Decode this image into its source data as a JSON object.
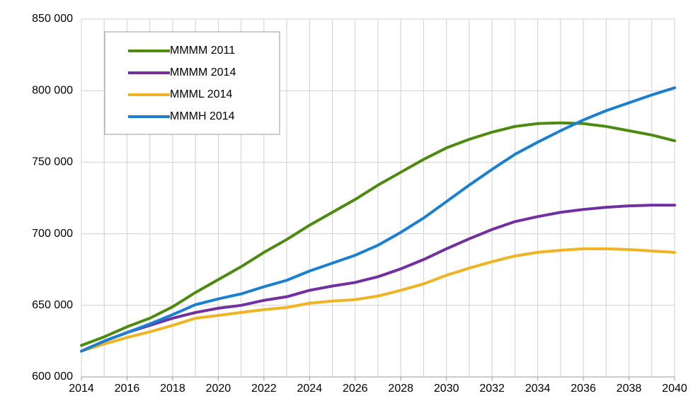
{
  "chart_data": {
    "type": "line",
    "x": [
      2014,
      2015,
      2016,
      2017,
      2018,
      2019,
      2020,
      2021,
      2022,
      2023,
      2024,
      2025,
      2026,
      2027,
      2028,
      2029,
      2030,
      2031,
      2032,
      2033,
      2034,
      2035,
      2036,
      2037,
      2038,
      2039,
      2040
    ],
    "series": [
      {
        "name": "MMMM 2011",
        "color": "#4e8a10",
        "values": [
          622000,
          628000,
          635000,
          641000,
          649000,
          659000,
          668000,
          677000,
          687000,
          696000,
          706000,
          715000,
          724000,
          734000,
          743000,
          752000,
          760000,
          766000,
          771000,
          775000,
          777000,
          777500,
          777000,
          775000,
          772000,
          769000,
          765000
        ]
      },
      {
        "name": "MMMM 2014",
        "color": "#7030a0",
        "values": [
          618000,
          625000,
          631000,
          636000,
          641000,
          645000,
          648000,
          650000,
          653500,
          656000,
          660500,
          663500,
          666000,
          670000,
          675500,
          682000,
          689500,
          696500,
          703000,
          708500,
          712000,
          715000,
          717000,
          718500,
          719500,
          720000,
          720000
        ]
      },
      {
        "name": "MMML 2014",
        "color": "#f0b323",
        "values": [
          618000,
          623000,
          627500,
          631500,
          636000,
          641000,
          643000,
          645000,
          647000,
          648500,
          651500,
          653000,
          654000,
          656500,
          660500,
          665000,
          671000,
          676000,
          680500,
          684500,
          687000,
          688500,
          689500,
          689500,
          689000,
          688000,
          687000
        ]
      },
      {
        "name": "MMMH 2014",
        "color": "#1a7fd1",
        "values": [
          618000,
          625000,
          631000,
          637000,
          643500,
          650500,
          654500,
          658000,
          663000,
          667500,
          674000,
          679500,
          685000,
          692000,
          701000,
          711000,
          722500,
          734000,
          745000,
          755500,
          764000,
          772000,
          779500,
          786000,
          791500,
          797000,
          802000
        ]
      }
    ],
    "xlim": [
      2014,
      2040
    ],
    "xticks": [
      2014,
      2016,
      2018,
      2020,
      2022,
      2024,
      2026,
      2028,
      2030,
      2032,
      2034,
      2036,
      2038,
      2040
    ],
    "ylim": [
      600000,
      850000
    ],
    "yticks": [
      {
        "value": 600000,
        "label": "600 000"
      },
      {
        "value": 650000,
        "label": "650 000"
      },
      {
        "value": 700000,
        "label": "700 000"
      },
      {
        "value": 750000,
        "label": "750 000"
      },
      {
        "value": 800000,
        "label": "800 000"
      },
      {
        "value": 850000,
        "label": "850 000"
      }
    ],
    "grid": true,
    "legend": "upper left"
  }
}
